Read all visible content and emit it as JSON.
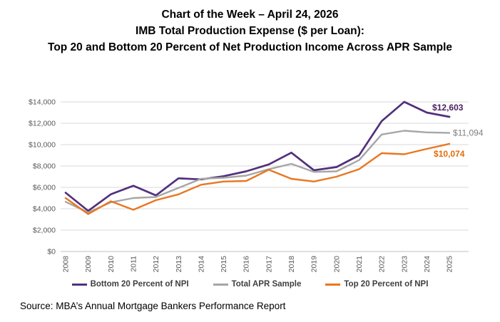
{
  "header": {
    "line1": "Chart of the Week – April 24, 2026",
    "line2": "IMB Total Production Expense ($ per Loan):",
    "line3": "Top 20 and Bottom 20 Percent of Net Production Income Across APR Sample"
  },
  "chart_data": {
    "type": "line",
    "title": "IMB Total Production Expense ($ per Loan)",
    "categories": [
      "2008",
      "2009",
      "2010",
      "2011",
      "2012",
      "2013",
      "2014",
      "2015",
      "2016",
      "2017",
      "2018",
      "2019",
      "2020",
      "2021",
      "2022",
      "2023",
      "2024",
      "2025"
    ],
    "series": [
      {
        "name": "Bottom 20 Percent of NPI",
        "color": "#52307C",
        "label_color": "#4A2063",
        "end_label": "$12,603",
        "end_value": 12603,
        "values": [
          5500,
          3800,
          5350,
          6150,
          5250,
          6850,
          6750,
          7050,
          7500,
          8150,
          9250,
          7600,
          7900,
          9000,
          12200,
          14000,
          13000,
          12603
        ]
      },
      {
        "name": "Total APR Sample",
        "color": "#A6A6A6",
        "label_color": "#7F7F7F",
        "end_label": "$11,094",
        "end_value": 11094,
        "values": [
          4650,
          3650,
          4600,
          5000,
          5100,
          5950,
          6800,
          6900,
          7100,
          7700,
          8200,
          7450,
          7500,
          8550,
          10950,
          11300,
          11150,
          11094
        ]
      },
      {
        "name": "Top 20 Percent of NPI",
        "color": "#E87722",
        "label_color": "#E36C0A",
        "end_label": "$10,074",
        "end_value": 10074,
        "values": [
          5000,
          3500,
          4700,
          3900,
          4800,
          5350,
          6250,
          6550,
          6600,
          7650,
          6800,
          6550,
          7000,
          7700,
          9200,
          9100,
          9600,
          10074
        ]
      }
    ],
    "xlabel": "",
    "ylabel": "",
    "ylim": [
      0,
      14000
    ],
    "ytick_step": 2000,
    "ytick_prefix": "$",
    "grid": true,
    "gridline_color": "#D9D9D9",
    "axis_line_color": "#BFBFBF",
    "tick_label_color": "#595959",
    "legend_position": "bottom"
  },
  "source": {
    "text": "Source: MBA’s Annual Mortgage Bankers Performance Report"
  }
}
